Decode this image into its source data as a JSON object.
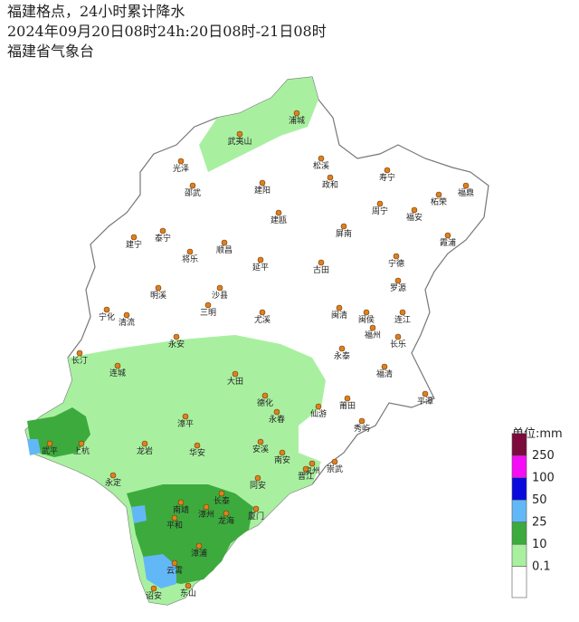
{
  "header": {
    "lines": [
      "福建格点，24小时累计降水",
      "2024年09月20日08时24h:20日08时-21日08时",
      "福建省气象台"
    ]
  },
  "legend": {
    "unit": "单位:mm",
    "levels": [
      {
        "value": 0.1,
        "color": "#a8f0a0"
      },
      {
        "value": 10,
        "color": "#3daa3d"
      },
      {
        "value": 25,
        "color": "#62b8f6"
      },
      {
        "value": 50,
        "color": "#0a0adc"
      },
      {
        "value": 100,
        "color": "#f50ef5"
      },
      {
        "value": 250,
        "color": "#7c0a3c"
      }
    ]
  },
  "cities": [
    "浦城",
    "武夷山",
    "光泽",
    "松溪",
    "寿宁",
    "邵武",
    "建阳",
    "政和",
    "周宁",
    "柘荣",
    "福鼎",
    "福安",
    "建瓯",
    "建宁",
    "泰宁",
    "屏南",
    "霞浦",
    "将乐",
    "顺昌",
    "延平",
    "古田",
    "宁德",
    "罗源",
    "明溪",
    "沙县",
    "三明",
    "宁化",
    "清流",
    "闽清",
    "闽侯",
    "连江",
    "福州",
    "长乐",
    "尤溪",
    "永安",
    "长汀",
    "连城",
    "永泰",
    "福清",
    "平潭",
    "大田",
    "德化",
    "永春",
    "仙游",
    "莆田",
    "秀屿",
    "漳平",
    "武平",
    "上杭",
    "龙岩",
    "华安",
    "安溪",
    "南安",
    "泉州",
    "晋江",
    "崇武",
    "永定",
    "同安",
    "长泰",
    "南靖",
    "漳州",
    "厦门",
    "平和",
    "龙海",
    "漳浦",
    "云霄",
    "东山",
    "诏安"
  ]
}
